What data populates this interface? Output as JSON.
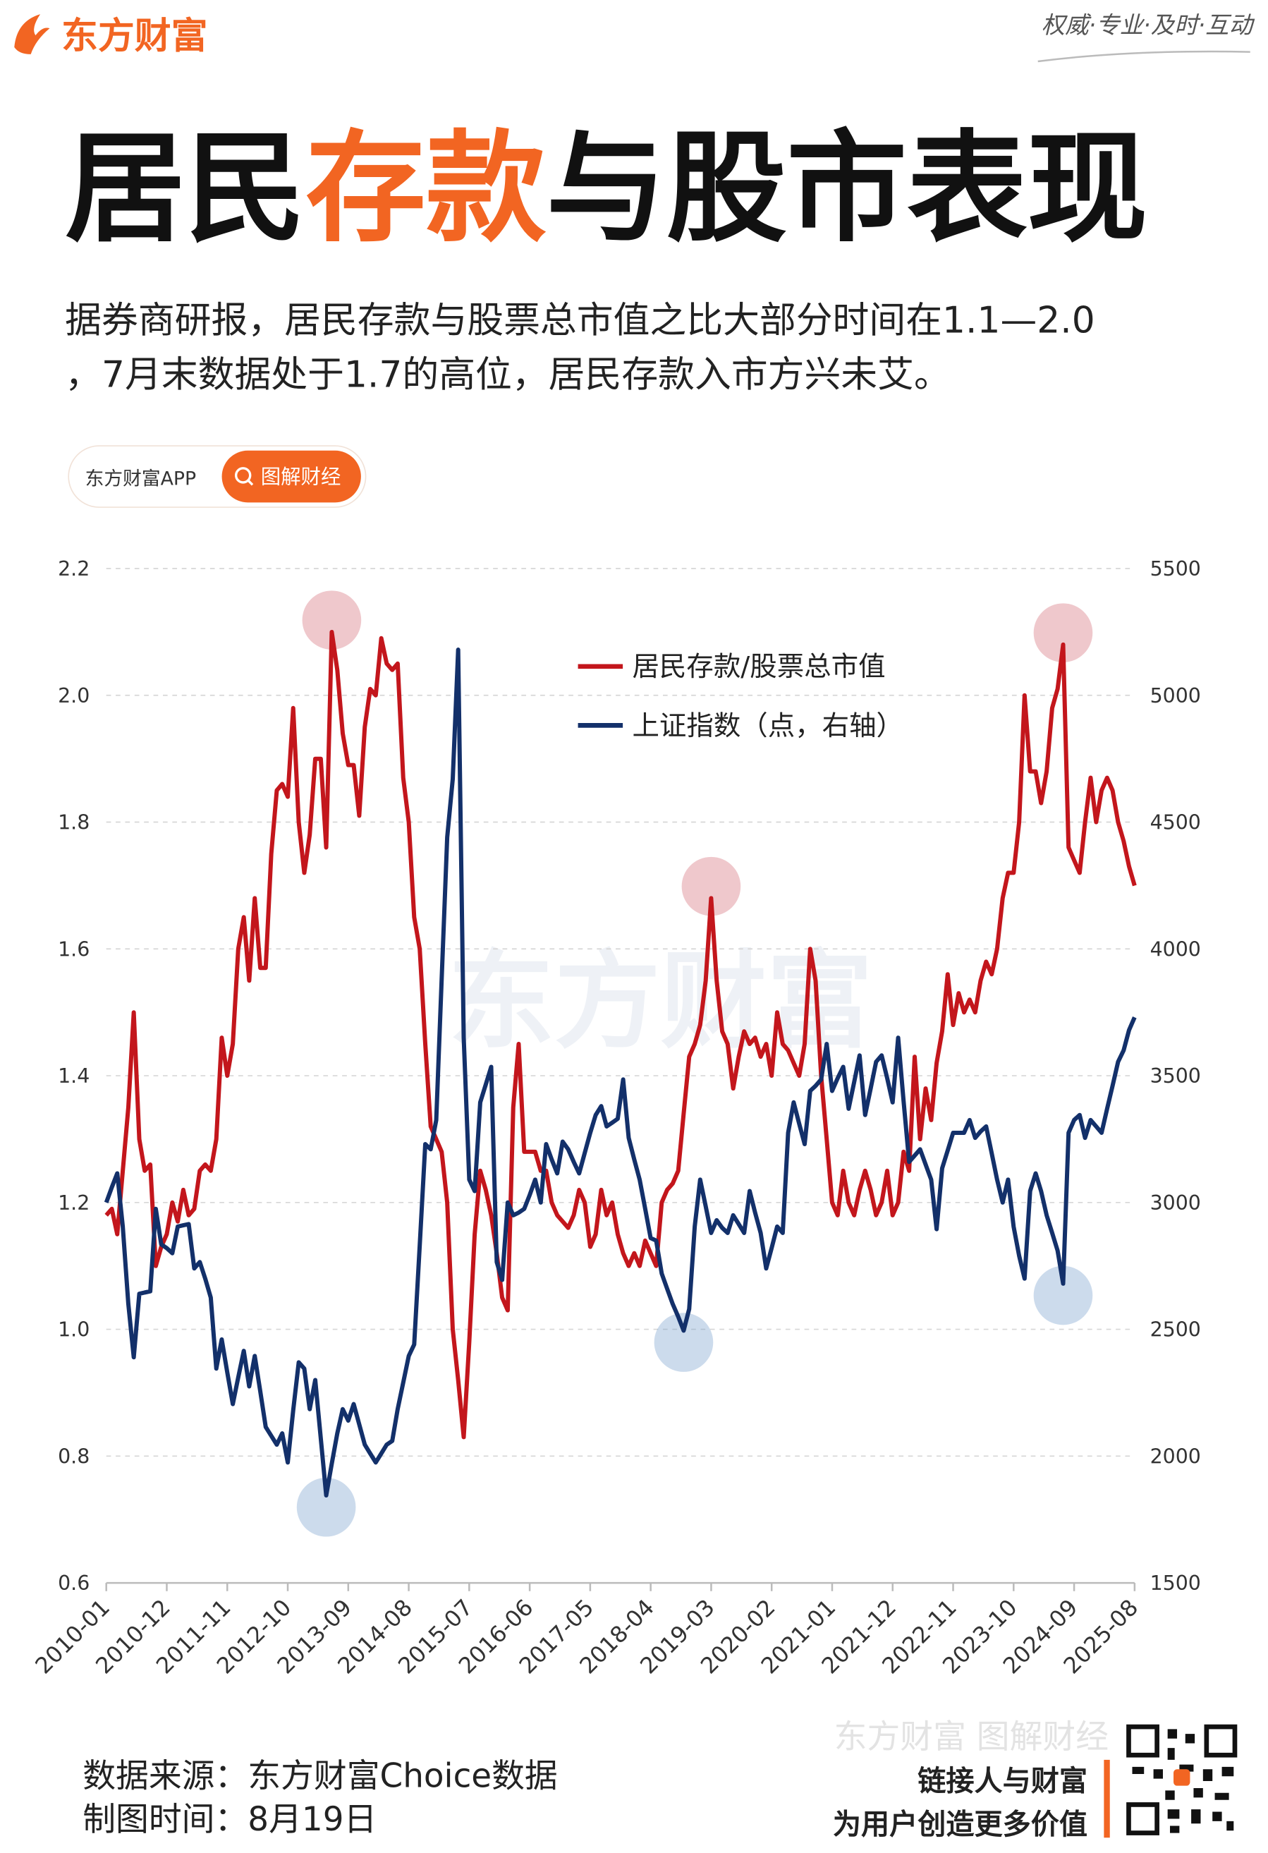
{
  "header": {
    "logo": "东方财富",
    "slogan": "权威·专业·及时·互动",
    "title": [
      "居民",
      "存款",
      "与股市表现"
    ],
    "subtitle": [
      "据券商研报，居民存款与股票总市值之比大部分时间在1.1—2.0",
      "，7月末数据处于1.7的高位，居民存款入市方兴未艾。"
    ]
  },
  "badge": {
    "app": "东方财富APP",
    "search": "图解财经"
  },
  "watermark": "东方财富",
  "chart_data": {
    "type": "line",
    "categories": [
      "2010-01",
      null,
      null,
      null,
      null,
      null,
      null,
      null,
      null,
      null,
      null,
      "2010-12",
      null,
      null,
      null,
      null,
      null,
      null,
      null,
      null,
      null,
      null,
      "2011-11",
      null,
      null,
      null,
      null,
      null,
      null,
      null,
      null,
      null,
      null,
      "2012-10",
      null,
      null,
      null,
      null,
      null,
      null,
      null,
      null,
      null,
      null,
      "2013-09",
      null,
      null,
      null,
      null,
      null,
      null,
      null,
      null,
      null,
      null,
      "2014-08",
      null,
      null,
      null,
      null,
      null,
      null,
      null,
      null,
      null,
      null,
      "2015-07",
      null,
      null,
      null,
      null,
      null,
      null,
      null,
      null,
      null,
      null,
      "2016-06",
      null,
      null,
      null,
      null,
      null,
      null,
      null,
      null,
      null,
      null,
      "2017-05",
      null,
      null,
      null,
      null,
      null,
      null,
      null,
      null,
      null,
      null,
      "2018-04",
      null,
      null,
      null,
      null,
      null,
      null,
      null,
      null,
      null,
      null,
      "2019-03",
      null,
      null,
      null,
      null,
      null,
      null,
      null,
      null,
      null,
      null,
      "2020-02",
      null,
      null,
      null,
      null,
      null,
      null,
      null,
      null,
      null,
      null,
      "2021-01",
      null,
      null,
      null,
      null,
      null,
      null,
      null,
      null,
      null,
      null,
      "2021-12",
      null,
      null,
      null,
      null,
      null,
      null,
      null,
      null,
      null,
      null,
      "2022-11",
      null,
      null,
      null,
      null,
      null,
      null,
      null,
      null,
      null,
      null,
      "2023-10",
      null,
      null,
      null,
      null,
      null,
      null,
      null,
      null,
      null,
      null,
      "2024-09",
      null,
      null,
      null,
      null,
      null,
      null,
      null,
      null,
      null,
      null,
      "2025-08"
    ],
    "series": [
      {
        "name": "居民存款/股票总市值",
        "color": "#c3161c",
        "axis": "y",
        "values": [
          1.18,
          1.19,
          1.15,
          1.25,
          1.35,
          1.5,
          1.3,
          1.25,
          1.26,
          1.1,
          1.13,
          1.15,
          1.2,
          1.17,
          1.22,
          1.18,
          1.19,
          1.25,
          1.26,
          1.25,
          1.3,
          1.46,
          1.4,
          1.45,
          1.6,
          1.65,
          1.55,
          1.68,
          1.57,
          1.57,
          1.75,
          1.85,
          1.86,
          1.84,
          1.98,
          1.8,
          1.72,
          1.78,
          1.9,
          1.9,
          1.76,
          2.1,
          2.04,
          1.94,
          1.89,
          1.89,
          1.81,
          1.95,
          2.01,
          2.0,
          2.09,
          2.05,
          2.04,
          2.05,
          1.87,
          1.8,
          1.65,
          1.6,
          1.45,
          1.32,
          1.3,
          1.28,
          1.2,
          1.0,
          0.92,
          0.83,
          0.98,
          1.15,
          1.25,
          1.22,
          1.18,
          1.12,
          1.05,
          1.03,
          1.35,
          1.45,
          1.28,
          1.28,
          1.28,
          1.25,
          1.25,
          1.2,
          1.18,
          1.17,
          1.16,
          1.18,
          1.22,
          1.2,
          1.13,
          1.15,
          1.22,
          1.18,
          1.2,
          1.15,
          1.12,
          1.1,
          1.12,
          1.1,
          1.14,
          1.12,
          1.1,
          1.2,
          1.22,
          1.23,
          1.25,
          1.34,
          1.43,
          1.45,
          1.48,
          1.55,
          1.68,
          1.55,
          1.47,
          1.45,
          1.38,
          1.43,
          1.47,
          1.45,
          1.46,
          1.43,
          1.45,
          1.4,
          1.5,
          1.45,
          1.44,
          1.42,
          1.4,
          1.45,
          1.6,
          1.55,
          1.4,
          1.3,
          1.2,
          1.18,
          1.25,
          1.2,
          1.18,
          1.22,
          1.25,
          1.22,
          1.18,
          1.2,
          1.25,
          1.18,
          1.2,
          1.28,
          1.25,
          1.43,
          1.3,
          1.38,
          1.33,
          1.42,
          1.47,
          1.56,
          1.48,
          1.53,
          1.5,
          1.52,
          1.5,
          1.55,
          1.58,
          1.56,
          1.6,
          1.68,
          1.72,
          1.72,
          1.8,
          2.0,
          1.88,
          1.88,
          1.83,
          1.88,
          1.98,
          2.01,
          2.08,
          1.76,
          1.74,
          1.72,
          1.8,
          1.87,
          1.8,
          1.85,
          1.87,
          1.85,
          1.8,
          1.77,
          1.73,
          1.7
        ]
      },
      {
        "name": "上证指数（点，右轴）",
        "color": "#13306a",
        "axis": "y2",
        "values": [
          3000,
          3060,
          3115,
          2905,
          2600,
          2390,
          2640,
          2645,
          2650,
          2975,
          2835,
          2820,
          2800,
          2905,
          2910,
          2915,
          2740,
          2765,
          2700,
          2625,
          2345,
          2460,
          2330,
          2205,
          2310,
          2415,
          2275,
          2395,
          2255,
          2115,
          2080,
          2045,
          2090,
          1975,
          2180,
          2370,
          2345,
          2185,
          2300,
          2070,
          1845,
          1970,
          2090,
          2185,
          2140,
          2205,
          2125,
          2045,
          2010,
          1975,
          2010,
          2045,
          2060,
          2185,
          2290,
          2395,
          2440,
          2830,
          3230,
          3210,
          3325,
          3880,
          4440,
          4670,
          5180,
          3650,
          3090,
          3045,
          3395,
          3465,
          3535,
          2765,
          2695,
          3000,
          2950,
          2960,
          2975,
          3030,
          3090,
          3000,
          3230,
          3170,
          3115,
          3240,
          3210,
          3160,
          3115,
          3195,
          3275,
          3345,
          3380,
          3300,
          3315,
          3330,
          3485,
          3255,
          3170,
          3090,
          2975,
          2860,
          2850,
          2720,
          2660,
          2600,
          2550,
          2495,
          2580,
          2905,
          3090,
          2985,
          2880,
          2930,
          2900,
          2880,
          2950,
          2915,
          2880,
          3045,
          2960,
          2880,
          2740,
          2820,
          2905,
          2880,
          3275,
          3395,
          3310,
          3230,
          3440,
          3460,
          3485,
          3625,
          3440,
          3490,
          3535,
          3370,
          3475,
          3580,
          3345,
          3450,
          3555,
          3580,
          3490,
          3395,
          3650,
          3400,
          3160,
          3185,
          3210,
          3150,
          3090,
          2895,
          3135,
          3205,
          3275,
          3275,
          3275,
          3325,
          3255,
          3280,
          3300,
          3195,
          3090,
          3000,
          3090,
          2905,
          2790,
          2700,
          3045,
          3115,
          3045,
          2950,
          2880,
          2810,
          2680,
          3275,
          3325,
          3345,
          3255,
          3325,
          3300,
          3275,
          3370,
          3460,
          3555,
          3600,
          3680,
          3730
        ]
      }
    ],
    "ylim": [
      0.6,
      2.2
    ],
    "yticks": [
      0.6,
      0.8,
      {
        "value": 1,
        "label": "1.0"
      },
      1.2,
      1.4,
      1.6,
      1.8,
      {
        "value": 2,
        "label": "2.0"
      },
      2.2
    ],
    "y2lim": [
      1500,
      5500
    ],
    "y2ticks": [
      1500,
      2000,
      2500,
      3000,
      3500,
      4000,
      4500,
      5000,
      5500
    ],
    "grid": true
  },
  "footer": {
    "source": "数据来源：东方财富Choice数据",
    "date": "制图时间：8月19日",
    "brand": "东方财富 图解财经",
    "tagline": [
      "链接人与财富",
      "为用户创造更多价值"
    ]
  }
}
